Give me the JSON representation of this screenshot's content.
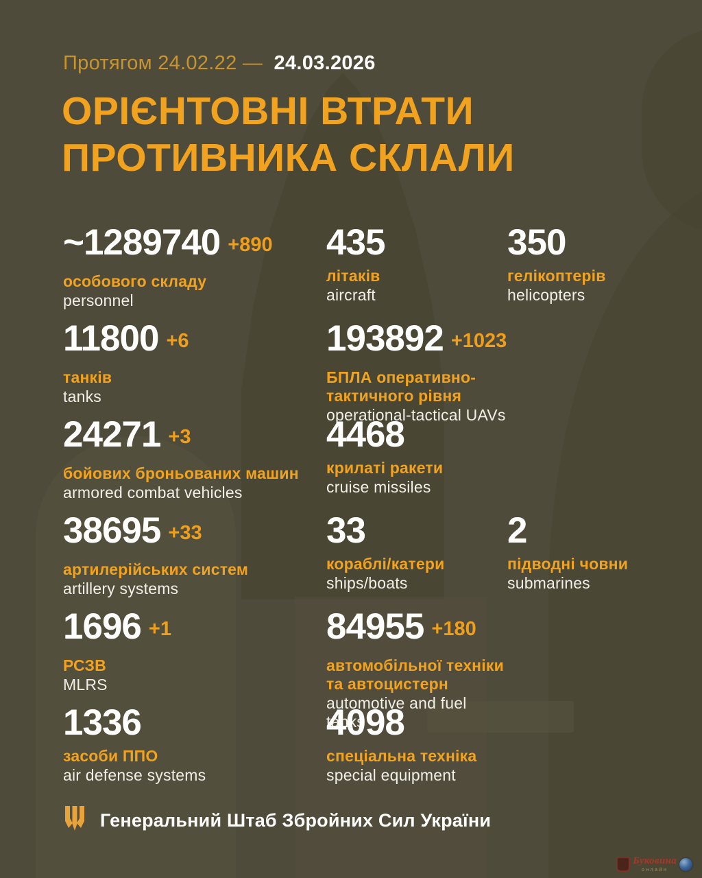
{
  "header": {
    "period_label": "Протягом 24.02.22 —",
    "period_date": "24.03.2026",
    "title_line1": "ОРІЄНТОВНІ ВТРАТИ",
    "title_line2": "ПРОТИВНИКА СКЛАЛИ"
  },
  "colors": {
    "background": "#4f4b3a",
    "accent_orange": "#f1a31f",
    "muted_orange": "#c7942f",
    "number_white": "#fdfdfc"
  },
  "stats_rows": [
    [
      {
        "num": "~1289740",
        "delta": "+890",
        "ua": "особового складу",
        "en": "personnel"
      },
      {
        "num": "435",
        "delta": "",
        "ua": "літаків",
        "en": "aircraft"
      },
      {
        "num": "350",
        "delta": "",
        "ua": "гелікоптерів",
        "en": "helicopters"
      }
    ],
    [
      {
        "num": "11800",
        "delta": "+6",
        "ua": "танків",
        "en": "tanks"
      },
      {
        "num": "193892",
        "delta": "+1023",
        "ua": "БПЛА оперативно-тактичного рівня",
        "en": "operational-tactical UAVs"
      }
    ],
    [
      {
        "num": "24271",
        "delta": "+3",
        "ua": "бойових броньованих машин",
        "en": "armored combat vehicles"
      },
      {
        "num": "4468",
        "delta": "",
        "ua": "крилаті ракети",
        "en": "cruise missiles"
      }
    ],
    [
      {
        "num": "38695",
        "delta": "+33",
        "ua": "артилерійських систем",
        "en": "artillery systems"
      },
      {
        "num": "33",
        "delta": "",
        "ua": "кораблі/катери",
        "en": "ships/boats"
      },
      {
        "num": "2",
        "delta": "",
        "ua": "підводні човни",
        "en": "submarines"
      }
    ],
    [
      {
        "num": "1696",
        "delta": "+1",
        "ua": "РСЗВ",
        "en": "MLRS"
      },
      {
        "num": "84955",
        "delta": "+180",
        "ua": "автомобільної техніки та автоцистерн",
        "en": "automotive and fuel tanks"
      }
    ],
    [
      {
        "num": "1336",
        "delta": "",
        "ua": "засоби ППО",
        "en": "air defense systems"
      },
      {
        "num": "4098",
        "delta": "",
        "ua": "спеціальна техніка",
        "en": "special equipment"
      }
    ]
  ],
  "footer": {
    "source": "Генеральний Штаб Збройних Сил України"
  },
  "corner_watermark": {
    "name": "Буковина",
    "sub": "онлайн"
  }
}
